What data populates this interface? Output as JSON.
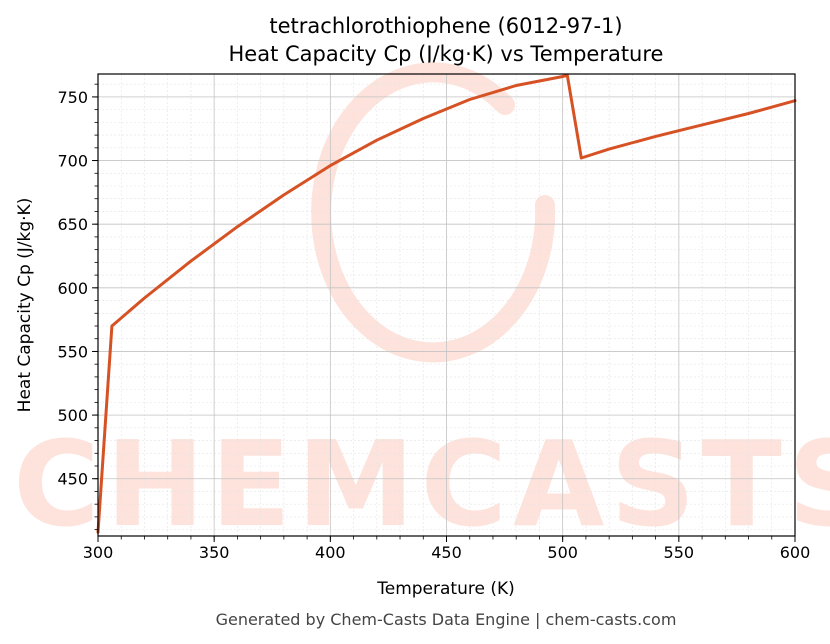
{
  "chart_data": {
    "type": "line",
    "title": "tetrachlorothiophene (6012-97-1)",
    "subtitle": "Heat Capacity Cp (J/kg·K) vs Temperature",
    "xlabel": "Temperature (K)",
    "ylabel": "Heat Capacity Cp (J/kg·K)",
    "xlim": [
      300,
      600
    ],
    "ylim": [
      405,
      768
    ],
    "xticks": [
      300,
      350,
      400,
      450,
      500,
      550,
      600
    ],
    "yticks": [
      450,
      500,
      550,
      600,
      650,
      700,
      750
    ],
    "grid": true,
    "series": [
      {
        "color": "#d65224",
        "x": [
          300,
          306,
          320,
          340,
          360,
          380,
          400,
          420,
          440,
          460,
          480,
          500,
          502,
          508,
          520,
          540,
          560,
          580,
          600
        ],
        "y": [
          408,
          570,
          592,
          621,
          648,
          673,
          696,
          716,
          733,
          748,
          759,
          766,
          767,
          702,
          709,
          719,
          728,
          737,
          747
        ]
      }
    ]
  },
  "watermark": {
    "text": "CHEMCASTS",
    "color": "#fde3dc"
  },
  "footer": "Generated by Chem-Casts Data Engine | chem-casts.com"
}
